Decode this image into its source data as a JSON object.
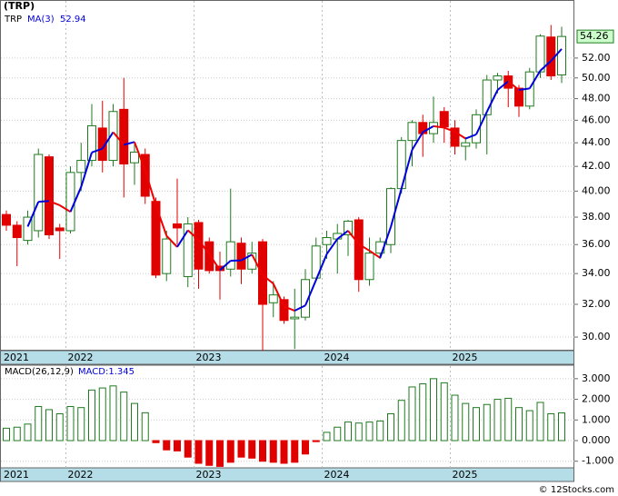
{
  "chart_data": [
    {
      "type": "candlestick",
      "title": "(TRP)",
      "series_name": "TRP",
      "categories": [
        "2021",
        null,
        null,
        null,
        null,
        null,
        "2022",
        null,
        null,
        null,
        null,
        null,
        null,
        null,
        null,
        null,
        null,
        null,
        "2023",
        null,
        null,
        null,
        null,
        null,
        null,
        null,
        null,
        null,
        null,
        null,
        "2024",
        null,
        null,
        null,
        null,
        null,
        null,
        null,
        null,
        null,
        null,
        null,
        "2025",
        null,
        null,
        null,
        null,
        null,
        null,
        null,
        null,
        null,
        null
      ],
      "open": [
        38.2,
        37.4,
        36.3,
        37.0,
        42.8,
        37.2,
        37.0,
        41.5,
        42.5,
        45.3,
        42.5,
        47.0,
        42.3,
        43.0,
        39.2,
        34.0,
        37.5,
        33.8,
        37.6,
        36.2,
        34.5,
        34.3,
        36.1,
        34.3,
        36.2,
        32.1,
        32.3,
        31.1,
        31.2,
        33.7,
        36.0,
        36.4,
        36.7,
        37.8,
        33.6,
        35.4,
        36.0,
        40.2,
        44.2,
        45.8,
        44.8,
        46.8,
        45.3,
        43.7,
        44.0,
        46.5,
        49.8,
        50.2,
        49.0,
        47.3,
        50.6,
        54.2,
        50.3
      ],
      "high": [
        38.5,
        37.7,
        38.5,
        43.5,
        43.0,
        37.5,
        42.0,
        44.0,
        47.5,
        47.8,
        47.5,
        50.0,
        44.0,
        43.5,
        39.5,
        37.0,
        41.0,
        38.0,
        37.8,
        36.5,
        35.5,
        40.2,
        36.5,
        36.2,
        36.4,
        33.5,
        32.5,
        33.0,
        34.3,
        36.5,
        37.0,
        37.5,
        37.8,
        38.0,
        36.5,
        36.5,
        40.3,
        44.5,
        46.0,
        46.5,
        48.2,
        47.2,
        46.0,
        44.5,
        47.0,
        50.3,
        50.5,
        50.7,
        49.3,
        51.0,
        54.5,
        55.5,
        55.3
      ],
      "low": [
        37.0,
        34.5,
        36.0,
        36.5,
        36.4,
        35.0,
        36.8,
        40.0,
        42.0,
        41.5,
        42.0,
        39.5,
        40.5,
        39.0,
        33.7,
        33.5,
        36.0,
        33.1,
        33.0,
        34.0,
        32.3,
        33.8,
        33.3,
        34.0,
        29.2,
        31.2,
        30.8,
        29.3,
        31.0,
        33.5,
        35.0,
        34.0,
        35.2,
        32.8,
        33.2,
        35.0,
        35.4,
        39.8,
        42.0,
        42.8,
        44.0,
        44.0,
        43.0,
        42.5,
        43.5,
        43.0,
        48.5,
        47.2,
        46.3,
        47.0,
        50.0,
        49.8,
        49.5
      ],
      "close": [
        37.4,
        36.5,
        38.0,
        43.0,
        36.7,
        37.0,
        41.5,
        42.5,
        45.5,
        42.5,
        46.8,
        42.2,
        43.2,
        39.6,
        33.9,
        36.4,
        37.2,
        37.5,
        34.3,
        34.2,
        34.2,
        36.2,
        34.3,
        35.4,
        32.0,
        32.6,
        31.0,
        31.2,
        33.6,
        35.9,
        36.5,
        36.8,
        37.7,
        33.6,
        35.4,
        36.2,
        40.2,
        44.2,
        45.8,
        44.8,
        45.8,
        45.4,
        43.7,
        44.0,
        46.5,
        49.8,
        50.2,
        49.0,
        47.3,
        50.6,
        54.3,
        50.2,
        54.26
      ],
      "up_color": "#1f7a1f",
      "down_color": "#e00000",
      "ma": {
        "name": "MA(3)",
        "rising_color": "#0000dd",
        "falling_color": "#ee0000",
        "values": [
          null,
          null,
          37.3,
          39.17,
          39.23,
          38.9,
          38.4,
          40.33,
          43.17,
          43.5,
          44.93,
          43.83,
          44.07,
          41.67,
          38.9,
          36.63,
          35.83,
          37.03,
          36.33,
          35.33,
          34.23,
          34.87,
          34.9,
          35.3,
          33.9,
          33.33,
          31.87,
          31.6,
          31.93,
          33.57,
          35.33,
          36.4,
          37.0,
          36.03,
          35.57,
          35.07,
          37.27,
          40.2,
          43.4,
          44.93,
          45.47,
          45.33,
          44.97,
          44.37,
          44.73,
          46.77,
          48.83,
          49.67,
          48.83,
          48.97,
          50.73,
          51.7,
          52.94
        ]
      },
      "last_label": "54.26",
      "ylim": [
        29.26,
        58.2
      ],
      "log_scale": true,
      "grid": true,
      "yticks": [
        {
          "value": 30,
          "label": "30.00"
        },
        {
          "value": 32,
          "label": "32.00"
        },
        {
          "value": 34,
          "label": "34.00"
        },
        {
          "value": 36,
          "label": "36.00"
        },
        {
          "value": 38,
          "label": "38.00"
        },
        {
          "value": 40,
          "label": "40.00"
        },
        {
          "value": 42,
          "label": "42.00"
        },
        {
          "value": 44,
          "label": "44.00"
        },
        {
          "value": 46,
          "label": "46.00"
        },
        {
          "value": 48,
          "label": "48.00"
        },
        {
          "value": 50,
          "label": "50.00"
        },
        {
          "value": 52,
          "label": "52.00"
        }
      ]
    },
    {
      "type": "bar",
      "title": "MACD(26,12,9)",
      "value_label": "MACD:1.345",
      "categories": [
        "2021",
        null,
        null,
        null,
        null,
        null,
        "2022",
        null,
        null,
        null,
        null,
        null,
        null,
        null,
        null,
        null,
        null,
        null,
        "2023",
        null,
        null,
        null,
        null,
        null,
        null,
        null,
        null,
        null,
        null,
        null,
        "2024",
        null,
        null,
        null,
        null,
        null,
        null,
        null,
        null,
        null,
        null,
        null,
        "2025",
        null,
        null,
        null,
        null,
        null,
        null,
        null,
        null,
        null,
        null
      ],
      "values": [
        0.6,
        0.65,
        0.8,
        1.65,
        1.5,
        1.3,
        1.65,
        1.6,
        2.45,
        2.55,
        2.65,
        2.35,
        1.8,
        1.35,
        -0.1,
        -0.45,
        -0.5,
        -0.8,
        -1.1,
        -1.2,
        -1.25,
        -1.05,
        -0.8,
        -0.85,
        -1.0,
        -1.05,
        -1.1,
        -1.05,
        -0.65,
        -0.05,
        0.4,
        0.65,
        0.9,
        0.85,
        0.9,
        0.95,
        1.3,
        1.95,
        2.6,
        2.75,
        3.0,
        2.8,
        2.2,
        1.8,
        1.6,
        1.75,
        2.0,
        2.05,
        1.6,
        1.45,
        1.85,
        1.3,
        1.345
      ],
      "up_color": "#1f7a1f",
      "down_color": "#e00000",
      "ylim": [
        -1.32,
        3.61
      ],
      "grid": true,
      "yticks": [
        {
          "value": -1,
          "label": "-1.000"
        },
        {
          "value": 0,
          "label": "0.000"
        },
        {
          "value": 1,
          "label": "1.000"
        },
        {
          "value": 2,
          "label": "2.000"
        },
        {
          "value": 3,
          "label": "3.000"
        }
      ]
    }
  ],
  "footer": "© 12Stocks.com"
}
